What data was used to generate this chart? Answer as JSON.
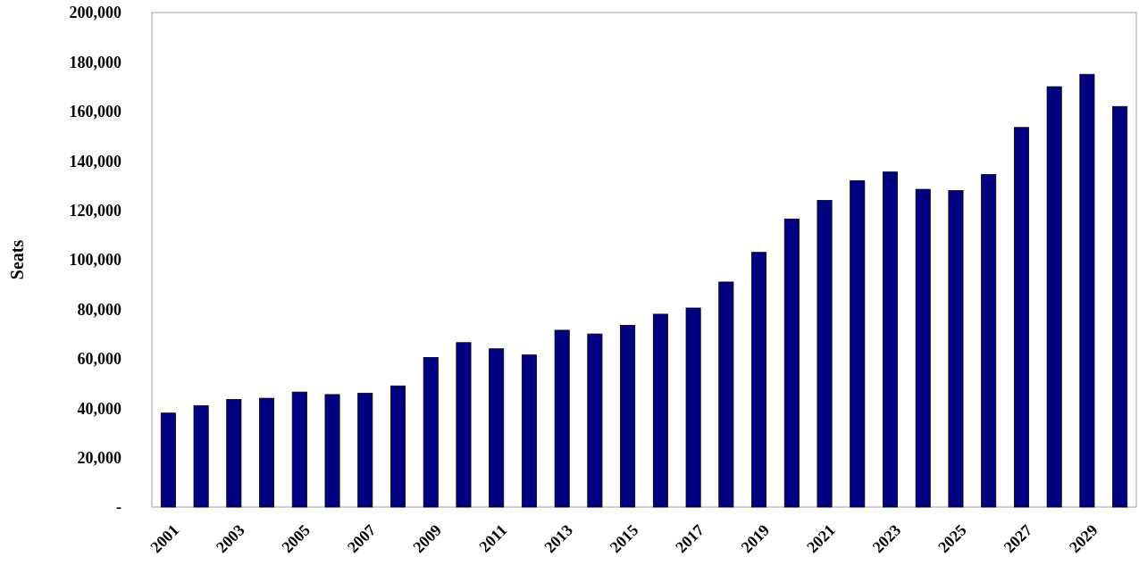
{
  "chart_data": {
    "type": "bar",
    "ylabel": "Seats",
    "categories": [
      "2001",
      null,
      "2003",
      null,
      "2005",
      null,
      "2007",
      null,
      "2009",
      null,
      "2011",
      null,
      "2013",
      null,
      "2015",
      null,
      "2017",
      null,
      "2019",
      null,
      "2021",
      null,
      "2023",
      null,
      "2025",
      null,
      "2027",
      null,
      "2029",
      null
    ],
    "values": [
      38000,
      41000,
      43500,
      44000,
      46500,
      45500,
      46000,
      49000,
      60500,
      66500,
      64000,
      61500,
      71500,
      70000,
      73500,
      78000,
      80500,
      91000,
      103000,
      116500,
      124000,
      132000,
      135500,
      128500,
      128000,
      134500,
      153500,
      170000,
      175000,
      162000
    ],
    "color": "#000080",
    "ylim": [
      0,
      200000
    ],
    "yticks": [
      {
        "value": 0,
        "label": "-"
      },
      {
        "value": 20000,
        "label": "20,000"
      },
      {
        "value": 40000,
        "label": "40,000"
      },
      {
        "value": 60000,
        "label": "60,000"
      },
      {
        "value": 80000,
        "label": "80,000"
      },
      {
        "value": 100000,
        "label": "100,000"
      },
      {
        "value": 120000,
        "label": "120,000"
      },
      {
        "value": 140000,
        "label": "140,000"
      },
      {
        "value": 160000,
        "label": "160,000"
      },
      {
        "value": 180000,
        "label": "180,000"
      },
      {
        "value": 200000,
        "label": "200,000"
      }
    ]
  }
}
